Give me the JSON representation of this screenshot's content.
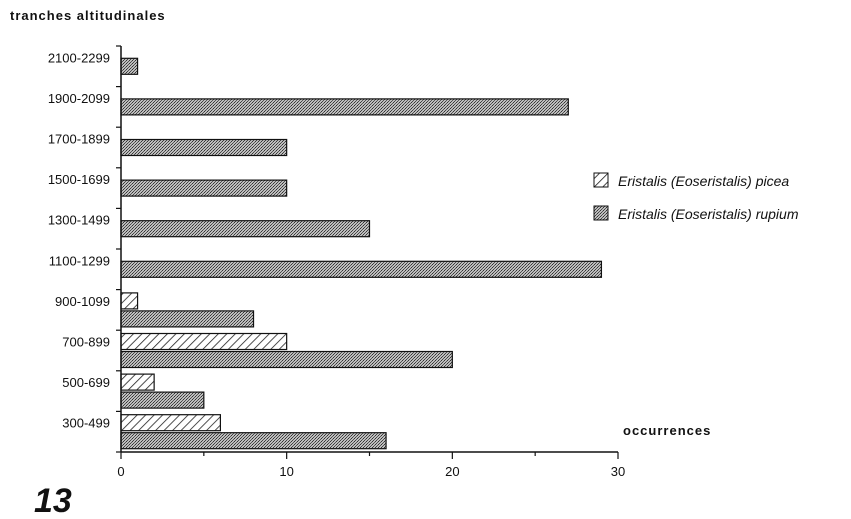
{
  "chart_data": {
    "type": "bar",
    "orientation": "horizontal",
    "ylabel": "tranches altitudinales",
    "xlabel": "occurrences",
    "xlim": [
      0,
      30
    ],
    "xticks": [
      0,
      10,
      20,
      30
    ],
    "categories": [
      "2100-2299",
      "1900-2099",
      "1700-1899",
      "1500-1699",
      "1300-1499",
      "1100-1299",
      "900-1099",
      "700-899",
      "500-699",
      "300-499"
    ],
    "series": [
      {
        "name": "Eristalis (Eoseristalis) picea",
        "pattern": "hatched",
        "values": [
          0,
          0,
          0,
          0,
          0,
          0,
          1,
          10,
          2,
          6
        ]
      },
      {
        "name": "Eristalis (Eoseristalis) rupium",
        "pattern": "stippled",
        "values": [
          1,
          27,
          10,
          10,
          15,
          29,
          8,
          20,
          5,
          16
        ]
      }
    ],
    "legend_position": "right",
    "grid": false
  },
  "figure_label": "13"
}
